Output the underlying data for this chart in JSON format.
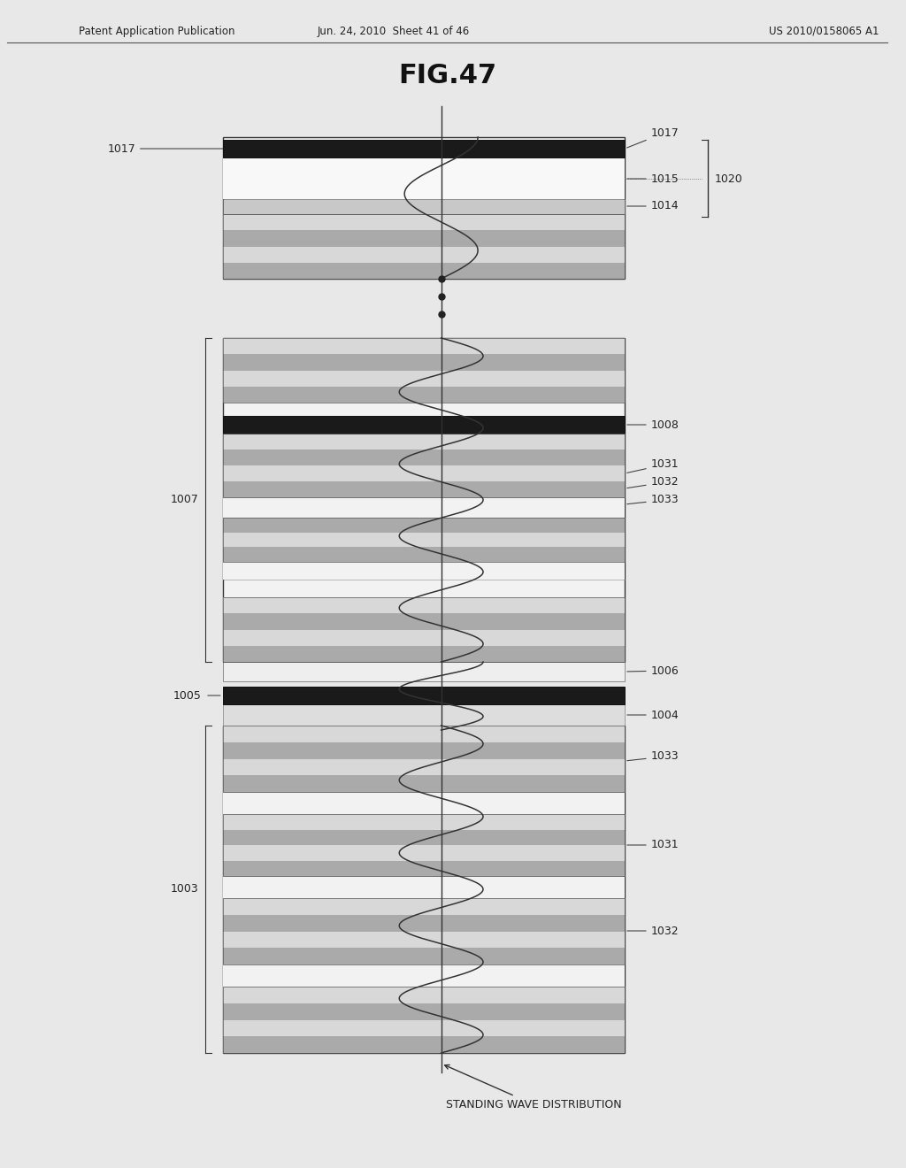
{
  "title": "FIG.47",
  "header_left": "Patent Application Publication",
  "header_center": "Jun. 24, 2010  Sheet 41 of 46",
  "header_right": "US 2010/0158065 A1",
  "bg_color": "#e8e8e8",
  "white": "#ffffff",
  "black": "#000000",
  "dark_gray": "#333333",
  "medium_gray": "#888888",
  "light_gray": "#cccccc",
  "stripe_gray": "#aaaaaa",
  "stripe_dark": "#777777"
}
